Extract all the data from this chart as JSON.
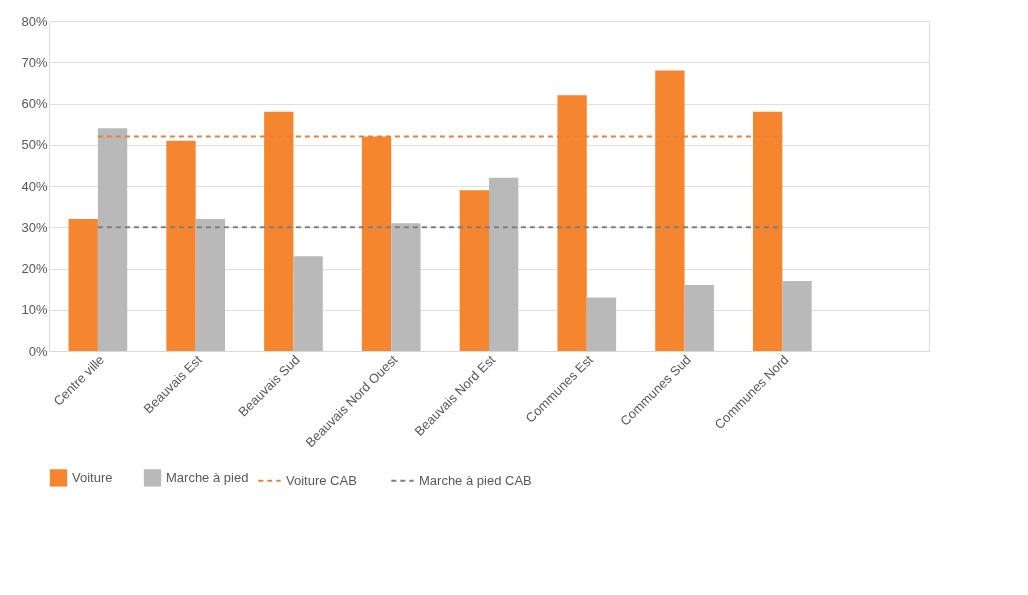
{
  "chart_data": {
    "type": "bar",
    "categories": [
      "Centre ville",
      "Beauvais Est",
      "Beauvais Sud",
      "Beauvais Nord Ouest",
      "Beauvais Nord Est",
      "Communes Est",
      "Communes Sud",
      "Communes Nord",
      null
    ],
    "series": [
      {
        "name": "Voiture",
        "color": "#f5862f",
        "values": [
          32,
          51,
          58,
          52,
          39,
          62,
          68,
          58,
          null
        ]
      },
      {
        "name": "Marche à pied",
        "color": "#b9b9b9",
        "values": [
          54,
          32,
          23,
          31,
          42,
          13,
          16,
          17,
          null
        ]
      },
      {
        "name": "Voiture CAB",
        "type": "line",
        "line_style": "dashed",
        "color": "#e8803a",
        "values": [
          52,
          52,
          52,
          52,
          52,
          52,
          52,
          52,
          null
        ]
      },
      {
        "name": "Marche à pied CAB",
        "type": "line",
        "line_style": "dashed",
        "color": "#7f7f7f",
        "values": [
          30,
          30,
          30,
          30,
          30,
          30,
          30,
          30,
          null
        ]
      }
    ],
    "ylim": [
      0,
      80
    ],
    "yticks": [
      {
        "value": 0,
        "label": "0%"
      },
      {
        "value": 10,
        "label": "10%"
      },
      {
        "value": 20,
        "label": "20%"
      },
      {
        "value": 30,
        "label": "30%"
      },
      {
        "value": 40,
        "label": "40%"
      },
      {
        "value": 50,
        "label": "50%"
      },
      {
        "value": 60,
        "label": "60%"
      },
      {
        "value": 70,
        "label": "70%"
      },
      {
        "value": 80,
        "label": "80%"
      }
    ],
    "grid": "y",
    "legend": "bottom"
  }
}
